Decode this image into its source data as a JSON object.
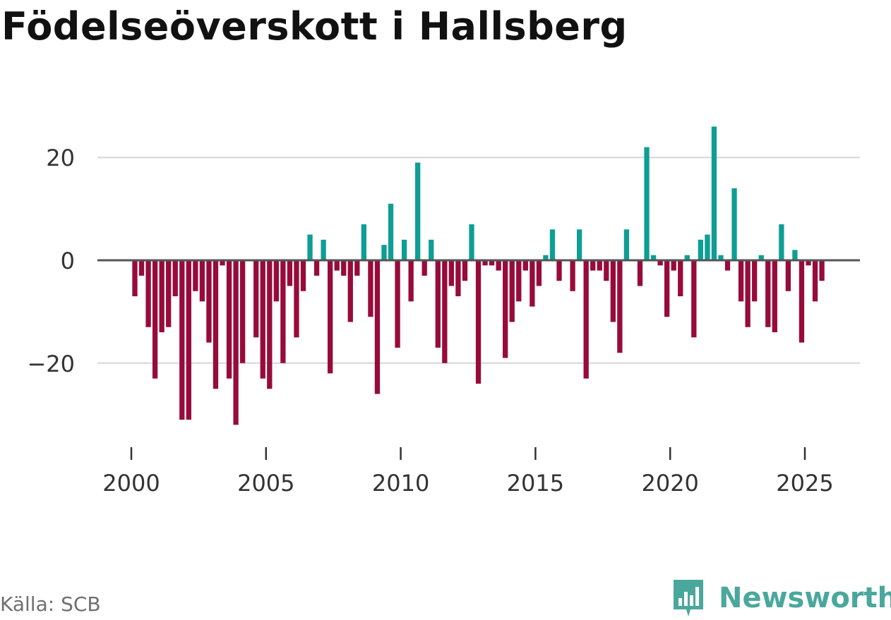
{
  "title": "Födelseöverskott i Hallsberg",
  "source": "Källa: SCB",
  "brand": {
    "name": "Newsworthy",
    "icon": "newsworthy-logo-icon"
  },
  "colors": {
    "positive": "#0e9e95",
    "negative": "#970b3b",
    "baseline": "#555555",
    "grid": "#dddddd",
    "brand": "#4aa79c"
  },
  "chart_data": {
    "type": "bar",
    "title": "Födelseöverskott i Hallsberg",
    "xlabel": "",
    "ylabel": "",
    "x_ticks": [
      "2000",
      "2005",
      "2010",
      "2015",
      "2020",
      "2025"
    ],
    "y_ticks": [
      {
        "value": 20,
        "label": "20"
      },
      {
        "value": 0,
        "label": "0"
      },
      {
        "value": -20,
        "label": "−20"
      }
    ],
    "ylim": [
      -35,
      30
    ],
    "xlim": [
      1999.0,
      2027.0
    ],
    "series": [
      {
        "name": "Födelseöverskott",
        "start": "2000-Q1",
        "frequency": "quarterly",
        "values": [
          -7,
          -3,
          -13,
          -23,
          -14,
          -13,
          -7,
          -31,
          -31,
          -6,
          -8,
          -16,
          -25,
          -1,
          -23,
          -32,
          -20,
          0,
          -15,
          -23,
          -25,
          -8,
          -20,
          -5,
          -15,
          -6,
          5,
          -3,
          4,
          -22,
          -2,
          -3,
          -12,
          -3,
          7,
          -11,
          -26,
          3,
          11,
          -17,
          4,
          -8,
          19,
          -3,
          4,
          -17,
          -20,
          -5,
          -7,
          -4,
          7,
          -24,
          -1,
          -1,
          -2,
          -19,
          -12,
          -8,
          -2,
          -9,
          -5,
          1,
          6,
          -4,
          0,
          -6,
          6,
          -23,
          -2,
          -2,
          -4,
          -12,
          -18,
          6,
          0,
          -5,
          22,
          1,
          -1,
          -11,
          -2,
          -7,
          1,
          -15,
          4,
          5,
          26,
          1,
          -2,
          14,
          -8,
          -13,
          -8,
          1,
          -13,
          -14,
          7,
          -6,
          2,
          -16,
          -1,
          -8,
          -4
        ]
      }
    ]
  }
}
